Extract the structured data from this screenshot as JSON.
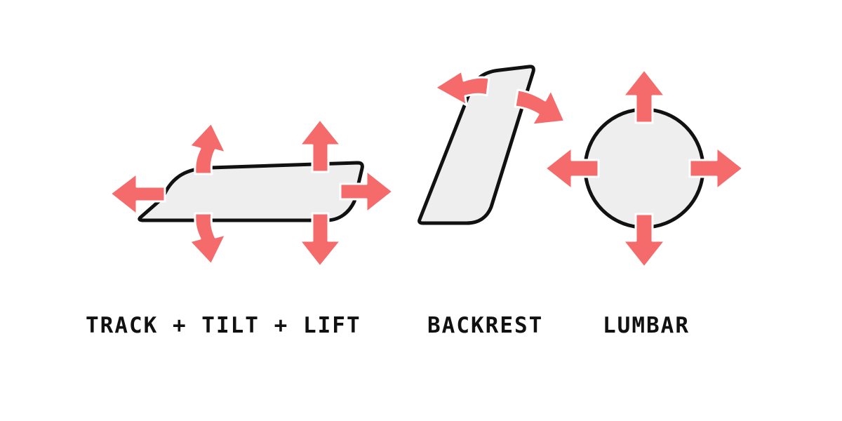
{
  "colors": {
    "arrow": "#f56a6a",
    "shape_fill": "#eeeeee",
    "shape_stroke": "#111111",
    "background": "#ffffff"
  },
  "labels": {
    "seat": "TRACK + TILT + LIFT",
    "backrest": "BACKREST",
    "lumbar": "LUMBAR"
  }
}
